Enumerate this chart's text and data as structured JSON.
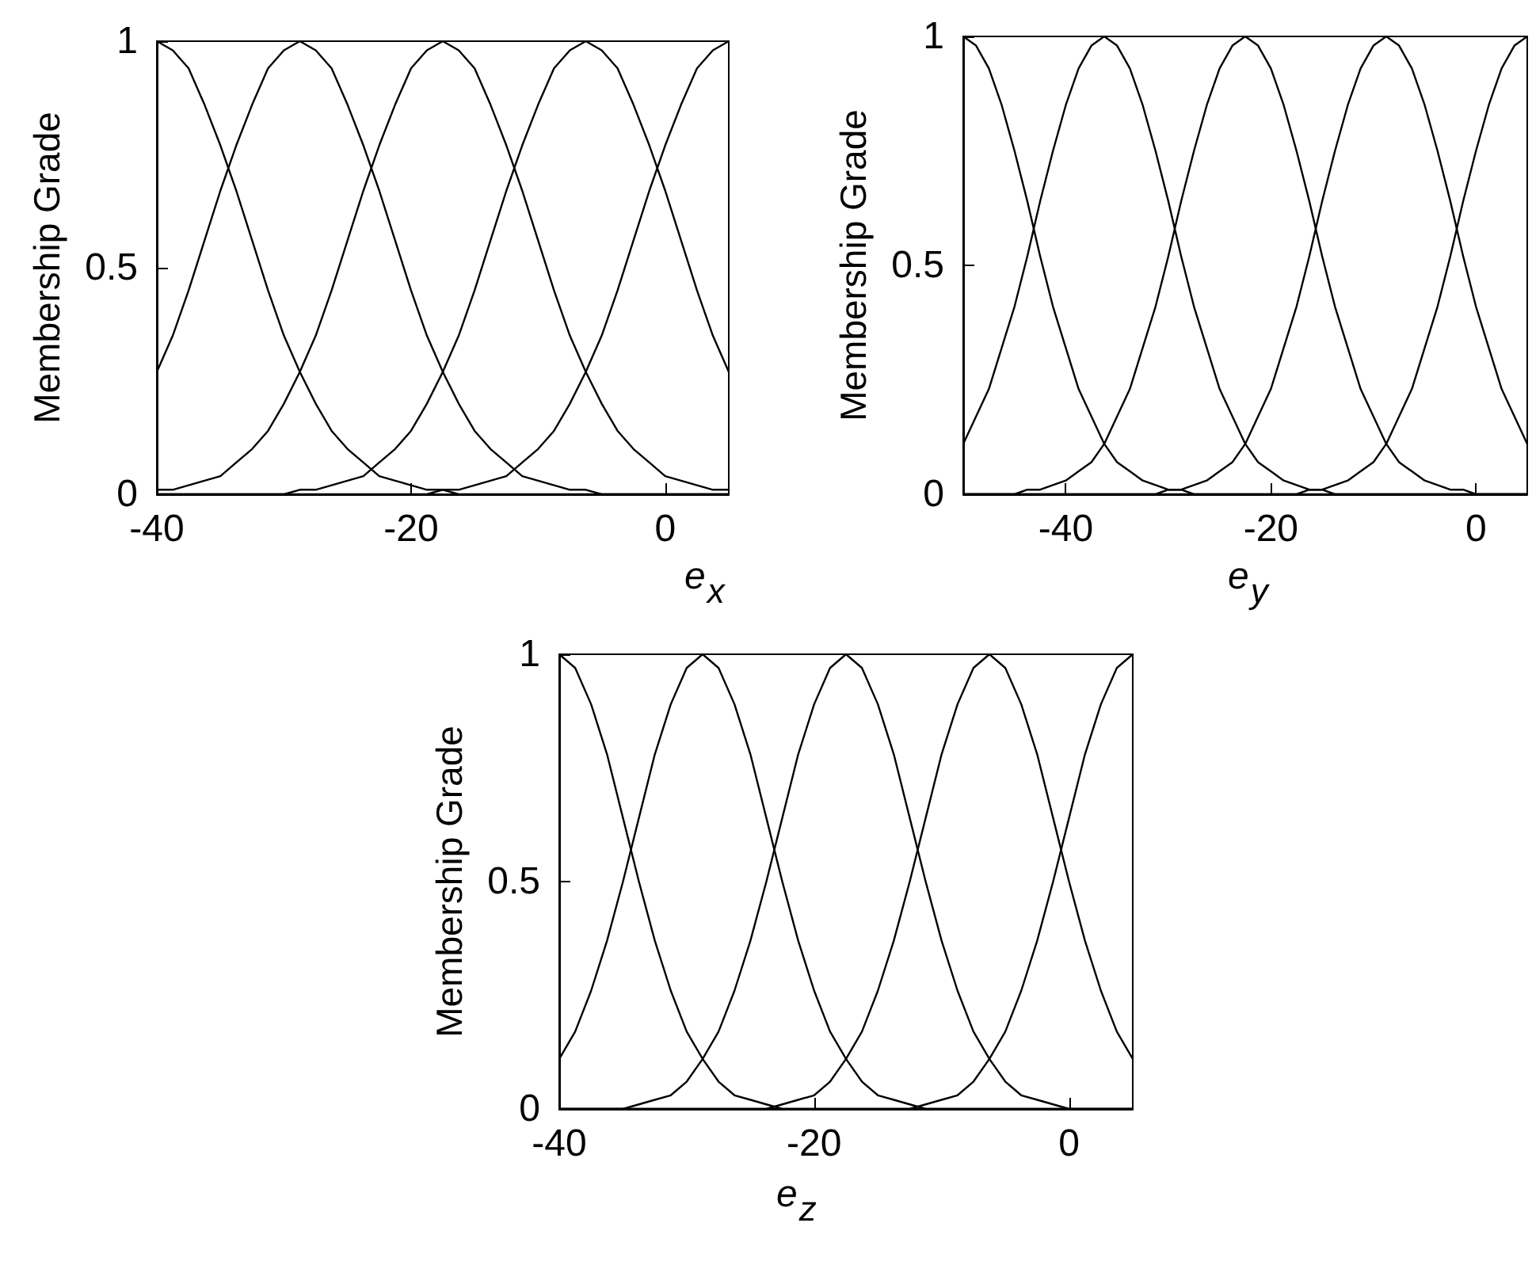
{
  "chart_data": [
    {
      "type": "line",
      "xlabel": "e$_{x}$",
      "ylabel": "Membership Grade",
      "xlim": [
        -40,
        5
      ],
      "ylim": [
        0,
        1
      ],
      "xticks": [
        -40,
        -20,
        0
      ],
      "yticks": [
        0,
        0.5,
        1
      ],
      "marker": "none",
      "line_style": "solid",
      "x": [
        -40,
        -38.75,
        -37.5,
        -36.25,
        -35,
        -33.75,
        -32.5,
        -31.25,
        -30,
        -28.75,
        -27.5,
        -26.25,
        -25,
        -23.75,
        -22.5,
        -21.25,
        -20,
        -18.75,
        -17.5,
        -16.25,
        -15,
        -13.75,
        -12.5,
        -11.25,
        -10,
        -8.75,
        -7.5,
        -6.25,
        -5,
        -3.75,
        -2.5,
        -1.25,
        0,
        1.25,
        2.5,
        3.75,
        5
      ],
      "series": [
        {
          "color": "#000000",
          "values": [
            1,
            0.98,
            0.94,
            0.86,
            0.77,
            0.67,
            0.56,
            0.45,
            0.35,
            0.27,
            0.2,
            0.14,
            0.1,
            0.07,
            0.04,
            0.03,
            0.02,
            0.01,
            0.01,
            0,
            0,
            0,
            0,
            0,
            0,
            0,
            0,
            0,
            0,
            0,
            0,
            0,
            0,
            0,
            0,
            0,
            0
          ]
        },
        {
          "color": "#000000",
          "values": [
            0.27,
            0.35,
            0.45,
            0.56,
            0.67,
            0.77,
            0.86,
            0.94,
            0.98,
            1,
            0.98,
            0.94,
            0.86,
            0.77,
            0.67,
            0.56,
            0.45,
            0.35,
            0.27,
            0.2,
            0.14,
            0.1,
            0.07,
            0.04,
            0.03,
            0.02,
            0.01,
            0.01,
            0,
            0,
            0,
            0,
            0,
            0,
            0,
            0,
            0
          ]
        },
        {
          "color": "#000000",
          "values": [
            0.01,
            0.01,
            0.02,
            0.03,
            0.04,
            0.07,
            0.1,
            0.14,
            0.2,
            0.27,
            0.35,
            0.45,
            0.56,
            0.67,
            0.77,
            0.86,
            0.94,
            0.98,
            1,
            0.98,
            0.94,
            0.86,
            0.77,
            0.67,
            0.56,
            0.45,
            0.35,
            0.27,
            0.2,
            0.14,
            0.1,
            0.07,
            0.04,
            0.03,
            0.02,
            0.01,
            0.01
          ]
        },
        {
          "color": "#000000",
          "values": [
            0,
            0,
            0,
            0,
            0,
            0,
            0,
            0,
            0,
            0.01,
            0.01,
            0.02,
            0.03,
            0.04,
            0.07,
            0.1,
            0.14,
            0.2,
            0.27,
            0.35,
            0.45,
            0.56,
            0.67,
            0.77,
            0.86,
            0.94,
            0.98,
            1,
            0.98,
            0.94,
            0.86,
            0.77,
            0.67,
            0.56,
            0.45,
            0.35,
            0.27
          ]
        },
        {
          "color": "#000000",
          "values": [
            0,
            0,
            0,
            0,
            0,
            0,
            0,
            0,
            0,
            0,
            0,
            0,
            0,
            0,
            0,
            0,
            0,
            0,
            0.01,
            0.01,
            0.02,
            0.03,
            0.04,
            0.07,
            0.1,
            0.14,
            0.2,
            0.27,
            0.35,
            0.45,
            0.56,
            0.67,
            0.77,
            0.86,
            0.94,
            0.98,
            1
          ]
        }
      ]
    },
    {
      "type": "line",
      "xlabel": "e$_{y}$",
      "ylabel": "Membership Grade",
      "xlim": [
        -50,
        5
      ],
      "ylim": [
        0,
        1
      ],
      "xticks": [
        -40,
        -20,
        0
      ],
      "yticks": [
        0,
        0.5,
        1
      ],
      "marker": "none",
      "line_style": "solid",
      "x": [
        -50,
        -48.75,
        -47.5,
        -46.25,
        -45,
        -43.75,
        -42.5,
        -41.25,
        -40,
        -38.75,
        -37.5,
        -36.25,
        -35,
        -33.75,
        -32.5,
        -31.25,
        -30,
        -28.75,
        -27.5,
        -26.25,
        -25,
        -23.75,
        -22.5,
        -21.25,
        -20,
        -18.75,
        -17.5,
        -16.25,
        -15,
        -13.75,
        -12.5,
        -11.25,
        -10,
        -8.75,
        -7.5,
        -6.25,
        -5,
        -3.75,
        -2.5,
        -1.25,
        0,
        1.25,
        2.5,
        3.75,
        5
      ],
      "series": [
        {
          "color": "#000000",
          "values": [
            1,
            0.98,
            0.93,
            0.85,
            0.75,
            0.64,
            0.52,
            0.41,
            0.32,
            0.23,
            0.17,
            0.11,
            0.07,
            0.05,
            0.03,
            0.02,
            0.01,
            0.01,
            0,
            0,
            0,
            0,
            0,
            0,
            0,
            0,
            0,
            0,
            0,
            0,
            0,
            0,
            0,
            0,
            0,
            0,
            0,
            0,
            0,
            0,
            0,
            0,
            0,
            0,
            0
          ]
        },
        {
          "color": "#000000",
          "values": [
            0.11,
            0.17,
            0.23,
            0.32,
            0.41,
            0.52,
            0.64,
            0.75,
            0.85,
            0.93,
            0.98,
            1,
            0.98,
            0.93,
            0.85,
            0.75,
            0.64,
            0.52,
            0.41,
            0.32,
            0.23,
            0.17,
            0.11,
            0.07,
            0.05,
            0.03,
            0.02,
            0.01,
            0.01,
            0,
            0,
            0,
            0,
            0,
            0,
            0,
            0,
            0,
            0,
            0,
            0,
            0,
            0,
            0,
            0
          ]
        },
        {
          "color": "#000000",
          "values": [
            0,
            0,
            0,
            0,
            0,
            0.01,
            0.01,
            0.02,
            0.03,
            0.05,
            0.07,
            0.11,
            0.17,
            0.23,
            0.32,
            0.41,
            0.52,
            0.64,
            0.75,
            0.85,
            0.93,
            0.98,
            1,
            0.98,
            0.93,
            0.85,
            0.75,
            0.64,
            0.52,
            0.41,
            0.32,
            0.23,
            0.17,
            0.11,
            0.07,
            0.05,
            0.03,
            0.02,
            0.01,
            0.01,
            0,
            0,
            0,
            0,
            0
          ]
        },
        {
          "color": "#000000",
          "values": [
            0,
            0,
            0,
            0,
            0,
            0,
            0,
            0,
            0,
            0,
            0,
            0,
            0,
            0,
            0,
            0,
            0.01,
            0.01,
            0.02,
            0.03,
            0.05,
            0.07,
            0.11,
            0.17,
            0.23,
            0.32,
            0.41,
            0.52,
            0.64,
            0.75,
            0.85,
            0.93,
            0.98,
            1,
            0.98,
            0.93,
            0.85,
            0.75,
            0.64,
            0.52,
            0.41,
            0.32,
            0.23,
            0.17,
            0.11
          ]
        },
        {
          "color": "#000000",
          "values": [
            0,
            0,
            0,
            0,
            0,
            0,
            0,
            0,
            0,
            0,
            0,
            0,
            0,
            0,
            0,
            0,
            0,
            0,
            0,
            0,
            0,
            0,
            0,
            0,
            0,
            0,
            0,
            0.01,
            0.01,
            0.02,
            0.03,
            0.05,
            0.07,
            0.11,
            0.17,
            0.23,
            0.32,
            0.41,
            0.52,
            0.64,
            0.75,
            0.85,
            0.93,
            0.98,
            1
          ]
        }
      ]
    },
    {
      "type": "line",
      "xlabel": "e$_{z}$",
      "ylabel": "Membership Grade",
      "xlim": [
        -40,
        5
      ],
      "ylim": [
        0,
        1
      ],
      "xticks": [
        -40,
        -20,
        0
      ],
      "yticks": [
        0,
        0.5,
        1
      ],
      "marker": "none",
      "line_style": "solid",
      "x": [
        -40,
        -38.75,
        -37.5,
        -36.25,
        -35,
        -33.75,
        -32.5,
        -31.25,
        -30,
        -28.75,
        -27.5,
        -26.25,
        -25,
        -23.75,
        -22.5,
        -21.25,
        -20,
        -18.75,
        -17.5,
        -16.25,
        -15,
        -13.75,
        -12.5,
        -11.25,
        -10,
        -8.75,
        -7.5,
        -6.25,
        -5,
        -3.75,
        -2.5,
        -1.25,
        0,
        1.25,
        2.5,
        3.75,
        5
      ],
      "series": [
        {
          "color": "#000000",
          "values": [
            1,
            0.97,
            0.89,
            0.78,
            0.64,
            0.5,
            0.37,
            0.26,
            0.17,
            0.11,
            0.06,
            0.03,
            0.02,
            0.01,
            0,
            0,
            0,
            0,
            0,
            0,
            0,
            0,
            0,
            0,
            0,
            0,
            0,
            0,
            0,
            0,
            0,
            0,
            0,
            0,
            0,
            0,
            0
          ]
        },
        {
          "color": "#000000",
          "values": [
            0.11,
            0.17,
            0.26,
            0.37,
            0.5,
            0.64,
            0.78,
            0.89,
            0.97,
            1,
            0.97,
            0.89,
            0.78,
            0.64,
            0.5,
            0.37,
            0.26,
            0.17,
            0.11,
            0.06,
            0.03,
            0.02,
            0.01,
            0,
            0,
            0,
            0,
            0,
            0,
            0,
            0,
            0,
            0,
            0,
            0,
            0,
            0
          ]
        },
        {
          "color": "#000000",
          "values": [
            0,
            0,
            0,
            0,
            0,
            0.01,
            0.02,
            0.03,
            0.06,
            0.11,
            0.17,
            0.26,
            0.37,
            0.5,
            0.64,
            0.78,
            0.89,
            0.97,
            1,
            0.97,
            0.89,
            0.78,
            0.64,
            0.5,
            0.37,
            0.26,
            0.17,
            0.11,
            0.06,
            0.03,
            0.02,
            0.01,
            0,
            0,
            0,
            0,
            0
          ]
        },
        {
          "color": "#000000",
          "values": [
            0,
            0,
            0,
            0,
            0,
            0,
            0,
            0,
            0,
            0,
            0,
            0,
            0,
            0,
            0.01,
            0.02,
            0.03,
            0.06,
            0.11,
            0.17,
            0.26,
            0.37,
            0.5,
            0.64,
            0.78,
            0.89,
            0.97,
            1,
            0.97,
            0.89,
            0.78,
            0.64,
            0.5,
            0.37,
            0.26,
            0.17,
            0.11
          ]
        },
        {
          "color": "#000000",
          "values": [
            0,
            0,
            0,
            0,
            0,
            0,
            0,
            0,
            0,
            0,
            0,
            0,
            0,
            0,
            0,
            0,
            0,
            0,
            0,
            0,
            0,
            0,
            0,
            0.01,
            0.02,
            0.03,
            0.06,
            0.11,
            0.17,
            0.26,
            0.37,
            0.5,
            0.64,
            0.78,
            0.89,
            0.97,
            1
          ]
        }
      ]
    }
  ]
}
